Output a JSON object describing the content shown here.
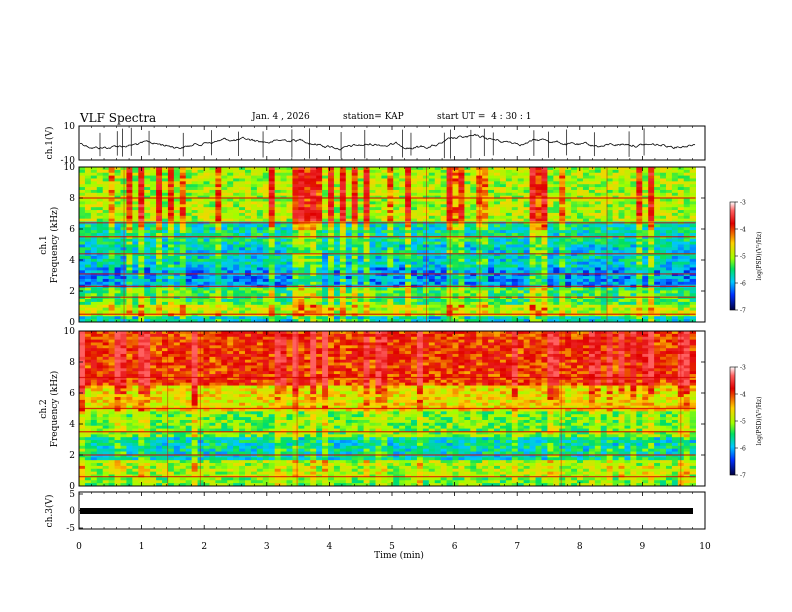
{
  "header": {
    "title": "VLF Spectra",
    "date": "Jan. 4 , 2026",
    "station": "station= KAP",
    "start": "start UT =  4 : 30 : 1"
  },
  "chart_data": [
    {
      "type": "line",
      "name": "ch1-waveform",
      "ylabel": "ch.1(V)",
      "ylim": [
        -10,
        10
      ],
      "yticks": [
        "10",
        "-10"
      ],
      "xlim": [
        0,
        10
      ]
    },
    {
      "type": "heatmap",
      "name": "ch1-spectrogram",
      "ylabel_line1": "ch.1",
      "ylabel_line2": "Frequency (kHz)",
      "ylim": [
        0,
        10
      ],
      "yticks": [
        "0",
        "2",
        "4",
        "6",
        "8",
        "10"
      ],
      "colorbar": {
        "label": "log(PSD)(V²/Hz)",
        "range": [
          -7,
          -3
        ],
        "ticks": [
          "-3",
          "-4",
          "-5",
          "-6",
          "-7"
        ]
      },
      "bands_khz": [
        0.5,
        1.6,
        2.3,
        3.1,
        4.4,
        5.5,
        6.4,
        8.0
      ]
    },
    {
      "type": "heatmap",
      "name": "ch2-spectrogram",
      "ylabel_line1": "ch.2",
      "ylabel_line2": "Frequency (kHz)",
      "ylim": [
        0,
        10
      ],
      "yticks": [
        "0",
        "2",
        "4",
        "6",
        "8",
        "10"
      ],
      "colorbar": {
        "label": "log(PSD)(V²/Hz)",
        "range": [
          -7,
          -3
        ],
        "ticks": [
          "-3",
          "-4",
          "-5",
          "-6",
          "-7"
        ]
      },
      "bands_khz": [
        0.6,
        2.0,
        3.5,
        5.0,
        7.0
      ]
    },
    {
      "type": "line",
      "name": "ch3-waveform",
      "ylabel": "ch.3(V)",
      "ylim": [
        -5,
        5
      ],
      "yticks": [
        "5",
        "0",
        "-5"
      ],
      "xlim": [
        0,
        10
      ],
      "level": -0.5
    }
  ],
  "xaxis": {
    "label": "Time (min)",
    "ticks": [
      "0",
      "1",
      "2",
      "3",
      "4",
      "5",
      "6",
      "7",
      "8",
      "9",
      "10"
    ],
    "data_end_min": 9.85
  }
}
